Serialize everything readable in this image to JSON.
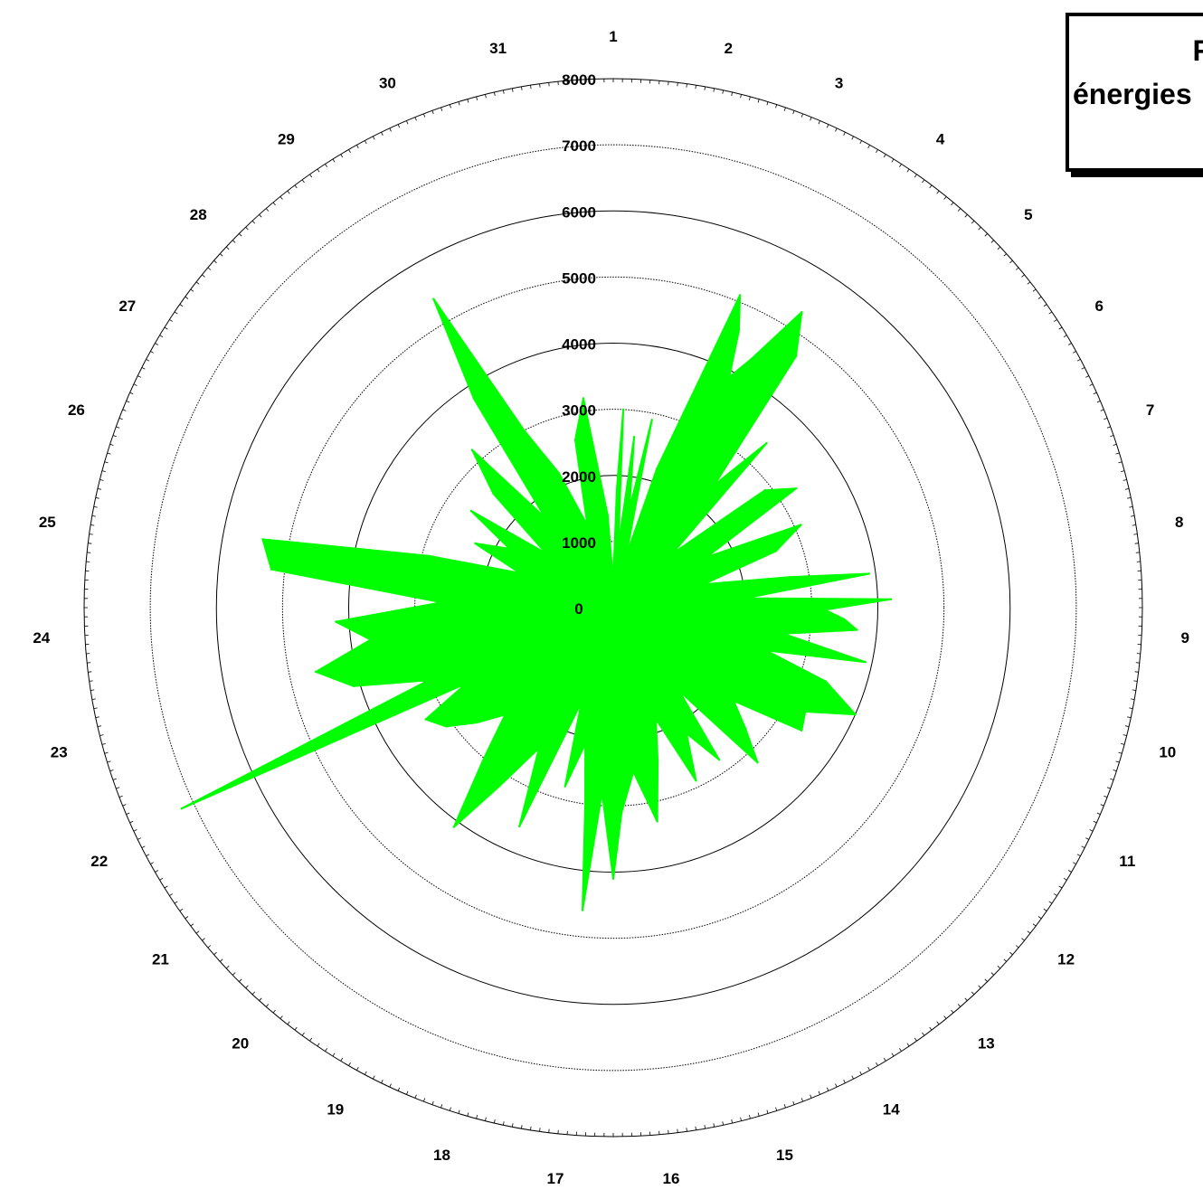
{
  "chart_data": {
    "type": "polar-area",
    "title_fragment_1": "F",
    "title_fragment_2": "énergies",
    "radial_ticks": [
      "0",
      "1000",
      "2000",
      "3000",
      "4000",
      "5000",
      "6000",
      "7000",
      "8000"
    ],
    "rmax": 8000,
    "angular_labels": [
      "1",
      "2",
      "3",
      "4",
      "5",
      "6",
      "7",
      "8",
      "9",
      "10",
      "11",
      "12",
      "13",
      "14",
      "15",
      "16",
      "17",
      "18",
      "19",
      "20",
      "21",
      "22",
      "23",
      "24",
      "25",
      "26",
      "27",
      "28",
      "29",
      "30",
      "31"
    ],
    "series": [
      {
        "color": "#00ff00",
        "theta_unit": "day",
        "points": [
          {
            "t": 0.0,
            "r": 400
          },
          {
            "t": 0.15,
            "r": 1800
          },
          {
            "t": 0.25,
            "r": 3000
          },
          {
            "t": 0.4,
            "r": 900
          },
          {
            "t": 0.6,
            "r": 2600
          },
          {
            "t": 0.8,
            "r": 1500
          },
          {
            "t": 1.0,
            "r": 2900
          },
          {
            "t": 1.2,
            "r": 800
          },
          {
            "t": 1.5,
            "r": 2200
          },
          {
            "t": 1.9,
            "r": 5100
          },
          {
            "t": 2.1,
            "r": 4600
          },
          {
            "t": 2.3,
            "r": 3900
          },
          {
            "t": 2.5,
            "r": 4300
          },
          {
            "t": 2.8,
            "r": 5300
          },
          {
            "t": 3.1,
            "r": 4700
          },
          {
            "t": 3.4,
            "r": 2400
          },
          {
            "t": 3.7,
            "r": 3400
          },
          {
            "t": 4.1,
            "r": 1200
          },
          {
            "t": 4.5,
            "r": 2900
          },
          {
            "t": 4.9,
            "r": 3300
          },
          {
            "t": 5.3,
            "r": 1600
          },
          {
            "t": 5.7,
            "r": 3100
          },
          {
            "t": 6.1,
            "r": 2600
          },
          {
            "t": 6.5,
            "r": 1400
          },
          {
            "t": 6.9,
            "r": 2700
          },
          {
            "t": 7.1,
            "r": 3900
          },
          {
            "t": 7.4,
            "r": 2000
          },
          {
            "t": 7.6,
            "r": 4200
          },
          {
            "t": 7.8,
            "r": 3200
          },
          {
            "t": 8.0,
            "r": 3500
          },
          {
            "t": 8.2,
            "r": 3700
          },
          {
            "t": 8.5,
            "r": 2600
          },
          {
            "t": 8.8,
            "r": 3900
          },
          {
            "t": 9.1,
            "r": 2400
          },
          {
            "t": 9.4,
            "r": 3400
          },
          {
            "t": 9.8,
            "r": 4000
          },
          {
            "t": 10.2,
            "r": 3300
          },
          {
            "t": 10.6,
            "r": 3400
          },
          {
            "t": 11.0,
            "r": 2300
          },
          {
            "t": 11.4,
            "r": 2700
          },
          {
            "t": 11.8,
            "r": 3200
          },
          {
            "t": 12.2,
            "r": 1600
          },
          {
            "t": 12.5,
            "r": 2800
          },
          {
            "t": 12.9,
            "r": 2200
          },
          {
            "t": 13.3,
            "r": 2900
          },
          {
            "t": 13.7,
            "r": 1800
          },
          {
            "t": 14.1,
            "r": 2400
          },
          {
            "t": 14.5,
            "r": 3300
          },
          {
            "t": 14.9,
            "r": 2500
          },
          {
            "t": 15.3,
            "r": 3100
          },
          {
            "t": 15.5,
            "r": 4100
          },
          {
            "t": 15.8,
            "r": 2800
          },
          {
            "t": 16.0,
            "r": 4600
          },
          {
            "t": 16.2,
            "r": 3000
          },
          {
            "t": 16.5,
            "r": 2100
          },
          {
            "t": 16.8,
            "r": 2800
          },
          {
            "t": 17.1,
            "r": 1500
          },
          {
            "t": 17.5,
            "r": 3600
          },
          {
            "t": 17.9,
            "r": 2400
          },
          {
            "t": 18.3,
            "r": 3200
          },
          {
            "t": 18.6,
            "r": 4100
          },
          {
            "t": 19.0,
            "r": 3000
          },
          {
            "t": 19.4,
            "r": 2300
          },
          {
            "t": 19.8,
            "r": 2700
          },
          {
            "t": 20.2,
            "r": 3100
          },
          {
            "t": 20.6,
            "r": 3300
          },
          {
            "t": 20.9,
            "r": 2500
          },
          {
            "t": 21.1,
            "r": 7200
          },
          {
            "t": 21.4,
            "r": 3000
          },
          {
            "t": 21.8,
            "r": 4100
          },
          {
            "t": 22.2,
            "r": 4600
          },
          {
            "t": 22.6,
            "r": 3700
          },
          {
            "t": 23.0,
            "r": 4200
          },
          {
            "t": 23.4,
            "r": 2600
          },
          {
            "t": 23.8,
            "r": 5200
          },
          {
            "t": 24.2,
            "r": 5400
          },
          {
            "t": 24.6,
            "r": 2900
          },
          {
            "t": 25.0,
            "r": 1500
          },
          {
            "t": 25.4,
            "r": 2300
          },
          {
            "t": 25.8,
            "r": 1800
          },
          {
            "t": 26.2,
            "r": 2600
          },
          {
            "t": 26.6,
            "r": 1300
          },
          {
            "t": 27.0,
            "r": 2500
          },
          {
            "t": 27.4,
            "r": 3200
          },
          {
            "t": 27.8,
            "r": 1700
          },
          {
            "t": 28.1,
            "r": 3800
          },
          {
            "t": 28.4,
            "r": 5400
          },
          {
            "t": 28.7,
            "r": 3000
          },
          {
            "t": 29.1,
            "r": 2200
          },
          {
            "t": 29.5,
            "r": 1300
          },
          {
            "t": 29.9,
            "r": 2600
          },
          {
            "t": 30.3,
            "r": 3200
          },
          {
            "t": 30.7,
            "r": 1400
          },
          {
            "t": 31.0,
            "r": 400
          }
        ]
      }
    ]
  }
}
